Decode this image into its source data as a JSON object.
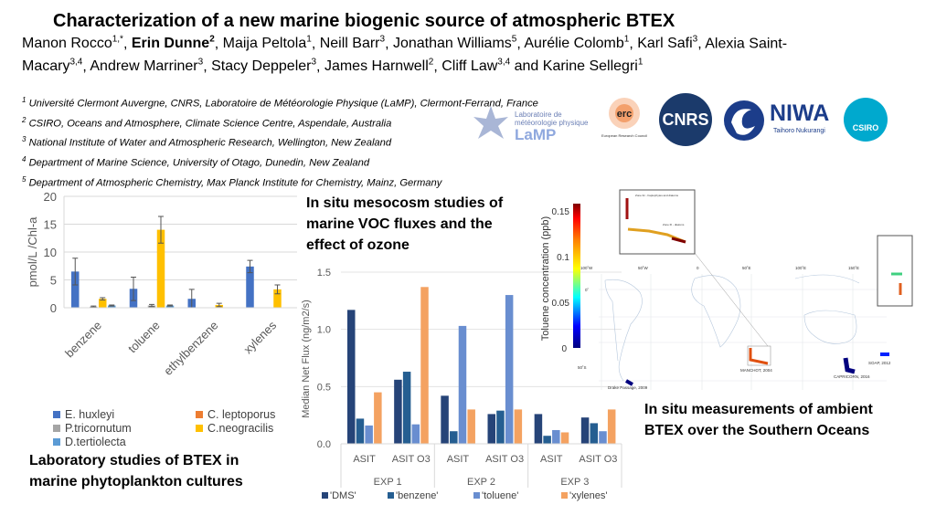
{
  "title": "Characterization of a new marine biogenic source of atmospheric BTEX",
  "authors_line1": [
    {
      "name": "Manon Rocco",
      "sup": "1,*",
      "bold": false
    },
    {
      "name": "Erin Dunne",
      "sup": "2",
      "bold": true
    },
    {
      "name": "Maija Peltola",
      "sup": "1",
      "bold": false
    },
    {
      "name": "Neill Barr",
      "sup": "3",
      "bold": false
    },
    {
      "name": "Jonathan Williams",
      "sup": "5",
      "bold": false
    },
    {
      "name": "Aurélie Colomb",
      "sup": "1",
      "bold": false
    },
    {
      "name": "Karl Safi",
      "sup": "3",
      "bold": false
    },
    {
      "name": "Alexia Saint-",
      "sup": "",
      "bold": false
    }
  ],
  "authors_line2": [
    {
      "name": "Macary",
      "sup": "3,4",
      "bold": false
    },
    {
      "name": "Andrew Marriner",
      "sup": "3",
      "bold": false
    },
    {
      "name": "Stacy Deppeler",
      "sup": "3",
      "bold": false
    },
    {
      "name": "James Harnwell",
      "sup": "2",
      "bold": false
    },
    {
      "name": "Cliff Law",
      "sup": "3,4",
      "bold": false
    },
    {
      "name": "and Karine Sellegri",
      "sup": "1",
      "bold": false
    }
  ],
  "affiliations": [
    {
      "sup": "1",
      "text": "Université Clermont Auvergne, CNRS, Laboratoire de Météorologie Physique (LaMP), Clermont-Ferrand, France"
    },
    {
      "sup": "2",
      "text": "CSIRO, Oceans and Atmosphere, Climate Science Centre, Aspendale, Australia"
    },
    {
      "sup": "3",
      "text": "National Institute of Water and Atmospheric Research, Wellington, New Zealand"
    },
    {
      "sup": "4",
      "text": "Department of Marine Science, University of Otago, Dunedin, New Zealand"
    },
    {
      "sup": "5",
      "text": "Department of Atmospheric Chemistry, Max Planck Institute for Chemistry, Mainz, Germany"
    }
  ],
  "logos": {
    "lamp": "LaMP",
    "lamp_sub": "Laboratoire de météorologie physique",
    "erc": "erc",
    "erc_sub": "European Research Council",
    "cnrs": "CNRS",
    "niwa": "NIWA",
    "niwa_sub": "Taihoro Nukurangi",
    "csiro": "CSIRO"
  },
  "captions": {
    "lab": [
      "Laboratory studies of BTEX in",
      "marine phytoplankton cultures"
    ],
    "meso": [
      "In situ mesocosm studies of",
      "marine VOC fluxes and the",
      "effect of  ozone"
    ],
    "ambient": [
      "In situ measurements of ambient",
      "BTEX over the Southern Oceans"
    ]
  },
  "chart_data": [
    {
      "type": "bar",
      "ylabel": "pmol/L /Chl-a",
      "ylim": [
        0,
        20
      ],
      "yticks": [
        0,
        5,
        10,
        15,
        20
      ],
      "grid": true,
      "legend_position": "bottom",
      "categories": [
        "benzene",
        "toluene",
        "ethylbenzene",
        "xylenes"
      ],
      "series": [
        {
          "name": "E. huxleyi",
          "color": "#4472c4",
          "values": [
            6.5,
            3.4,
            1.6,
            7.4
          ],
          "errors": [
            2.4,
            2.1,
            1.7,
            1.1
          ]
        },
        {
          "name": "C. leptoporus",
          "color": "#ed7d31",
          "values": [
            0,
            0,
            0,
            0
          ],
          "errors": [
            0,
            0,
            0,
            0
          ]
        },
        {
          "name": "P.tricornutum",
          "color": "#a5a5a5",
          "values": [
            0.2,
            0.4,
            0,
            0
          ],
          "errors": [
            0.1,
            0.2,
            0,
            0
          ]
        },
        {
          "name": "C.neogracilis",
          "color": "#ffc000",
          "values": [
            1.6,
            14.0,
            0.5,
            3.3
          ],
          "errors": [
            0.2,
            2.4,
            0.3,
            0.8
          ]
        },
        {
          "name": "D.tertiolecta",
          "color": "#5b9bd5",
          "values": [
            0.4,
            0.4,
            0,
            0
          ],
          "errors": [
            0.1,
            0.1,
            0,
            0
          ]
        }
      ]
    },
    {
      "type": "bar",
      "ylabel": "Median Net Flux (ng/m2/s)",
      "ylim": [
        0,
        1.5
      ],
      "yticks": [
        "0.0",
        "0.5",
        "1.0",
        "1.5"
      ],
      "grid": true,
      "legend_position": "bottom",
      "groups": [
        "EXP 1",
        "EXP 2",
        "EXP 3"
      ],
      "categories": [
        "ASIT",
        "ASIT O3",
        "ASIT",
        "ASIT O3",
        "ASIT",
        "ASIT O3"
      ],
      "series": [
        {
          "name": "'DMS'",
          "color": "#264478",
          "values": [
            1.17,
            0.56,
            0.42,
            0.26,
            0.26,
            0.23
          ]
        },
        {
          "name": "'benzene'",
          "color": "#255e91",
          "values": [
            0.22,
            0.63,
            0.11,
            0.29,
            0.07,
            0.18
          ]
        },
        {
          "name": "'toluene'",
          "color": "#698ed0",
          "values": [
            0.16,
            0.17,
            1.03,
            1.3,
            0.12,
            0.11
          ]
        },
        {
          "name": "'xylenes'",
          "color": "#f4a261",
          "values": [
            0.45,
            1.37,
            0.3,
            0.3,
            0.1,
            0.3
          ]
        }
      ]
    }
  ],
  "map": {
    "colorbar_label": "Toluene concentration (ppb)",
    "colorbar_ticks": [
      "0",
      "0.05",
      "0.1",
      "0.15"
    ],
    "lon_labels": [
      "100˚W",
      "50˚W",
      "0",
      "50˚E",
      "100˚E",
      "150˚E"
    ],
    "lat_labels": [
      "0˚",
      "50˚S"
    ],
    "campaigns": [
      "Drake Passage, 2009",
      "MANCHOT, 2004",
      "CAPRICORN, 2016",
      "SOAP, 2012",
      "Sea2Cloud, 2020"
    ],
    "inset_labels": [
      "Zone IIc - haptophytes and diatoms",
      "Zone III - diatoms"
    ]
  }
}
